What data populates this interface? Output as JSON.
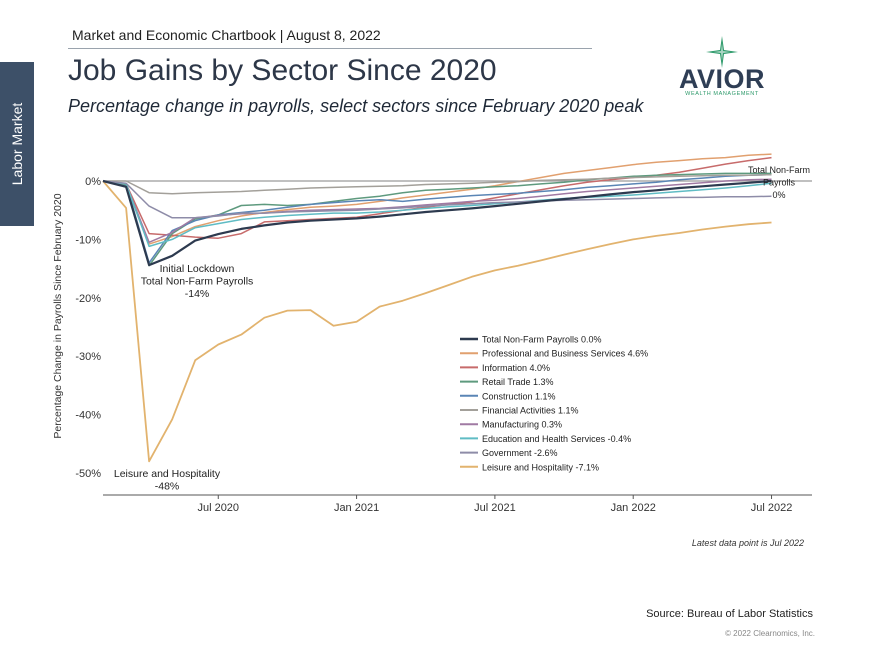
{
  "side_tab": "Labor Market",
  "header": "Market and Economic Chartbook | August 8, 2022",
  "title": "Job Gains by Sector Since 2020",
  "subtitle": "Percentage change in payrolls, select sectors since February 2020 peak",
  "logo": {
    "word": "AVIOR",
    "sub": "WEALTH MANAGEMENT",
    "color": "#2e9a6b"
  },
  "source": "Source: Bureau of Labor Statistics",
  "copyright": "© 2022 Clearnomics, Inc.",
  "chart_data": {
    "type": "line",
    "ylabel": "Percentage Change in Payrolls Since February 2020",
    "ylim": [
      -50,
      5
    ],
    "yticks": [
      0,
      -10,
      -20,
      -30,
      -40,
      -50
    ],
    "ytick_labels": [
      "0%",
      "-10%",
      "-20%",
      "-30%",
      "-40%",
      "-50%"
    ],
    "xticks": [
      {
        "date": "2020-07",
        "label": "Jul 2020"
      },
      {
        "date": "2021-01",
        "label": "Jan 2021"
      },
      {
        "date": "2021-07",
        "label": "Jul 2021"
      },
      {
        "date": "2022-01",
        "label": "Jan 2022"
      },
      {
        "date": "2022-07",
        "label": "Jul 2022"
      }
    ],
    "x": [
      "2020-02",
      "2020-03",
      "2020-04",
      "2020-05",
      "2020-06",
      "2020-07",
      "2020-08",
      "2020-09",
      "2020-10",
      "2020-11",
      "2020-12",
      "2021-01",
      "2021-02",
      "2021-03",
      "2021-04",
      "2021-05",
      "2021-06",
      "2021-07",
      "2021-08",
      "2021-09",
      "2021-10",
      "2021-11",
      "2021-12",
      "2022-01",
      "2022-02",
      "2022-03",
      "2022-04",
      "2022-05",
      "2022-06",
      "2022-07"
    ],
    "series": [
      {
        "name": "Total Non-Farm Payrolls 0.0%",
        "color": "#2d3a4f",
        "width": 2.2,
        "values": [
          0,
          -1,
          -14.4,
          -12.8,
          -10.2,
          -9.1,
          -8.2,
          -7.6,
          -7.1,
          -6.8,
          -6.6,
          -6.4,
          -6.1,
          -5.7,
          -5.3,
          -5.0,
          -4.7,
          -4.3,
          -3.9,
          -3.5,
          -3.1,
          -2.7,
          -2.3,
          -1.9,
          -1.6,
          -1.2,
          -0.9,
          -0.6,
          -0.3,
          0.0
        ]
      },
      {
        "name": "Professional and Business Services 4.6%",
        "color": "#e1a06f",
        "width": 1.5,
        "values": [
          0,
          -0.8,
          -10.8,
          -9.5,
          -7.8,
          -6.8,
          -6.0,
          -5.4,
          -4.9,
          -4.5,
          -4.3,
          -4.0,
          -3.5,
          -2.9,
          -2.4,
          -1.9,
          -1.4,
          -0.8,
          -0.1,
          0.6,
          1.3,
          1.8,
          2.3,
          2.8,
          3.2,
          3.5,
          3.8,
          4.0,
          4.4,
          4.6
        ]
      },
      {
        "name": "Information 4.0%",
        "color": "#c76b6b",
        "width": 1.5,
        "values": [
          0,
          -0.5,
          -9.0,
          -9.3,
          -9.6,
          -9.8,
          -9.0,
          -7.0,
          -6.8,
          -6.6,
          -6.4,
          -6.2,
          -5.6,
          -5.0,
          -4.5,
          -4.0,
          -3.6,
          -2.9,
          -2.2,
          -1.5,
          -0.8,
          -0.2,
          0.2,
          0.6,
          1.0,
          1.5,
          2.2,
          2.9,
          3.5,
          4.0
        ]
      },
      {
        "name": "Retail Trade 1.3%",
        "color": "#5e9a7e",
        "width": 1.5,
        "values": [
          0,
          -0.7,
          -14.5,
          -9.0,
          -6.5,
          -5.8,
          -4.2,
          -4.0,
          -4.2,
          -4.0,
          -3.5,
          -3.0,
          -2.6,
          -2.0,
          -1.6,
          -1.4,
          -1.2,
          -1.0,
          -0.8,
          -0.5,
          -0.2,
          0.2,
          0.5,
          0.8,
          1.0,
          1.1,
          1.2,
          1.3,
          1.3,
          1.3
        ]
      },
      {
        "name": "Construction 1.1%",
        "color": "#5a85b5",
        "width": 1.5,
        "values": [
          0,
          -0.5,
          -14.0,
          -8.5,
          -6.8,
          -5.8,
          -5.4,
          -5.0,
          -4.5,
          -4.0,
          -3.7,
          -3.4,
          -3.2,
          -3.5,
          -3.1,
          -2.8,
          -2.5,
          -2.3,
          -2.1,
          -1.8,
          -1.5,
          -1.1,
          -0.8,
          -0.5,
          -0.2,
          0.2,
          0.5,
          0.8,
          1.0,
          1.1
        ]
      },
      {
        "name": "Financial Activities 1.1%",
        "color": "#a3a09a",
        "width": 1.5,
        "values": [
          0,
          0,
          -2.0,
          -2.2,
          -2.0,
          -1.9,
          -1.8,
          -1.6,
          -1.4,
          -1.2,
          -1.1,
          -1.0,
          -0.9,
          -0.8,
          -0.6,
          -0.5,
          -0.4,
          -0.2,
          -0.1,
          0.1,
          0.2,
          0.3,
          0.5,
          0.6,
          0.7,
          0.8,
          0.9,
          1.0,
          1.0,
          1.1
        ]
      },
      {
        "name": "Manufacturing 0.3%",
        "color": "#a07aa3",
        "width": 1.5,
        "values": [
          0,
          -0.5,
          -10.5,
          -8.8,
          -6.3,
          -5.9,
          -5.6,
          -5.5,
          -5.2,
          -5.0,
          -4.9,
          -4.8,
          -4.7,
          -4.4,
          -4.1,
          -3.8,
          -3.5,
          -3.3,
          -3.0,
          -2.6,
          -2.2,
          -1.8,
          -1.5,
          -1.2,
          -0.9,
          -0.6,
          -0.3,
          0,
          0.2,
          0.3
        ]
      },
      {
        "name": "Education and Health Services -0.4%",
        "color": "#5fbcc4",
        "width": 1.5,
        "values": [
          0,
          -0.5,
          -11.2,
          -10.0,
          -8.0,
          -7.3,
          -6.6,
          -6.2,
          -5.9,
          -5.7,
          -5.5,
          -5.5,
          -5.3,
          -5.0,
          -4.7,
          -4.4,
          -4.2,
          -3.9,
          -3.6,
          -3.3,
          -3.0,
          -2.8,
          -2.6,
          -2.4,
          -2.1,
          -1.8,
          -1.5,
          -1.2,
          -0.8,
          -0.4
        ]
      },
      {
        "name": "Government -2.6%",
        "color": "#8e8ca8",
        "width": 1.5,
        "values": [
          0,
          -0.4,
          -4.3,
          -6.3,
          -6.3,
          -6.0,
          -5.5,
          -5.5,
          -5.3,
          -5.2,
          -5.1,
          -5.0,
          -4.8,
          -4.6,
          -4.3,
          -4.1,
          -3.9,
          -3.7,
          -3.6,
          -3.4,
          -3.3,
          -3.2,
          -3.1,
          -3.0,
          -2.9,
          -2.8,
          -2.8,
          -2.7,
          -2.7,
          -2.6
        ]
      },
      {
        "name": "Leisure and Hospitality -7.1%",
        "color": "#e2b36e",
        "width": 1.8,
        "values": [
          0,
          -4.6,
          -48.0,
          -40.8,
          -30.7,
          -28.0,
          -26.3,
          -23.4,
          -22.2,
          -22.1,
          -24.8,
          -24.1,
          -21.5,
          -20.5,
          -19.2,
          -17.8,
          -16.4,
          -15.3,
          -14.5,
          -13.6,
          -12.6,
          -11.7,
          -10.8,
          -10.0,
          -9.4,
          -8.9,
          -8.3,
          -7.8,
          -7.4,
          -7.1
        ]
      }
    ],
    "annotations": [
      {
        "lines": [
          "Initial Lockdown",
          "Total Non-Farm Payrolls",
          "-14%"
        ]
      },
      {
        "lines": [
          "Leisure and Hospitality",
          "-48%"
        ]
      },
      {
        "lines": [
          "Total Non-Farm",
          "Payrolls",
          "0%"
        ]
      }
    ],
    "footnote": "Latest data point is Jul 2022"
  }
}
